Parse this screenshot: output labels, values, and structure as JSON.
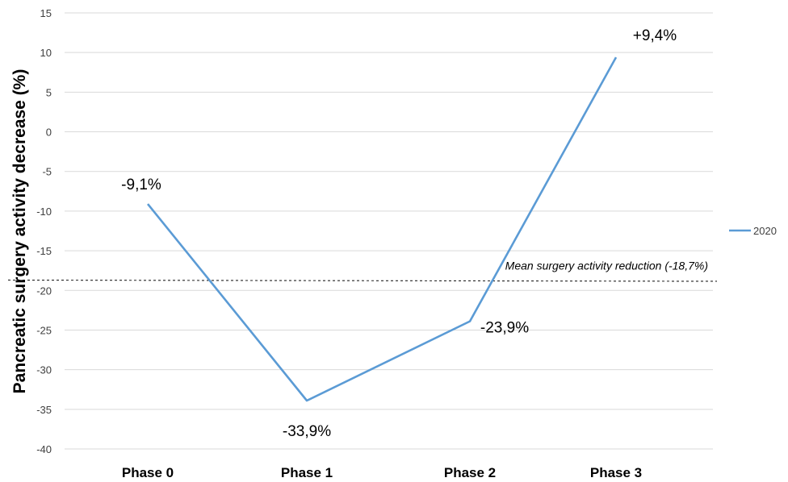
{
  "chart_data": {
    "type": "line",
    "ylabel": "Pancreatic surgery activity decrease (%)",
    "xlabel": "",
    "categories": [
      "Phase 0",
      "Phase 1",
      "Phase 2",
      "Phase 3"
    ],
    "series": [
      {
        "name": "2020",
        "values": [
          -9.1,
          -33.9,
          -23.9,
          9.4
        ],
        "labels": [
          "-9,1%",
          "-33,9%",
          "-23,9%",
          "+9,4%"
        ],
        "color": "#5b9bd5"
      }
    ],
    "ylim": [
      -40,
      15
    ],
    "yticks": [
      15,
      10,
      5,
      0,
      -5,
      -10,
      -15,
      -20,
      -25,
      -30,
      -35,
      -40
    ],
    "grid": true,
    "legend_position": "right",
    "reference_line": {
      "value": -18.7,
      "label": "Mean surgery activity reduction (-18,7%)",
      "style": "dashed"
    }
  }
}
